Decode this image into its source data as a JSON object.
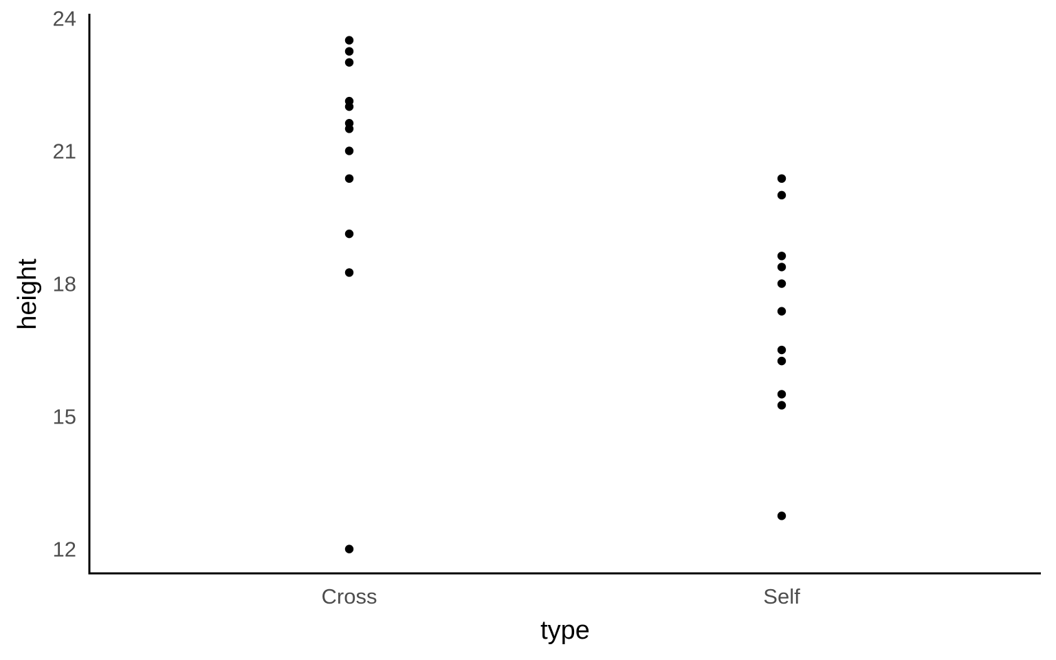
{
  "chart_data": {
    "type": "scatter",
    "title": "",
    "xlabel": "type",
    "ylabel": "height",
    "categories": [
      "Cross",
      "Self"
    ],
    "yticks": [
      12,
      15,
      18,
      21,
      24
    ],
    "ylim": [
      11.45,
      24.1
    ],
    "grid": false,
    "legend": "none",
    "point_color": "#000000",
    "series": [
      {
        "category": "Cross",
        "values": [
          23.5,
          23.25,
          23.0,
          22.125,
          22.0,
          21.625,
          21.5,
          21.0,
          20.375,
          19.125,
          18.25,
          12.0
        ]
      },
      {
        "category": "Self",
        "values": [
          20.375,
          20.0,
          18.625,
          18.375,
          18.0,
          17.375,
          16.5,
          16.25,
          15.5,
          15.25,
          12.75
        ]
      }
    ]
  }
}
